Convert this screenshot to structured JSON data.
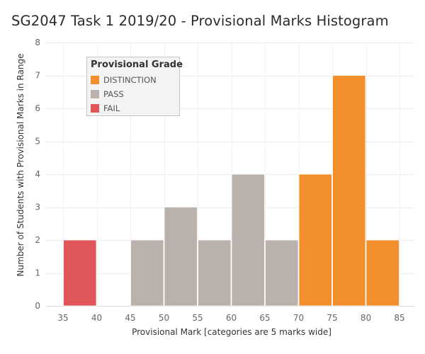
{
  "chart_data": {
    "type": "bar",
    "title": "SG2047 Task 1 2019/20 - Provisional Marks Histogram",
    "xlabel": "Provisional Mark [categories are 5 marks wide]",
    "ylabel": "Number of Students with Provisional Marks in Range",
    "x_ticks": [
      35,
      40,
      45,
      50,
      55,
      60,
      65,
      70,
      75,
      80,
      85
    ],
    "y_ticks": [
      0,
      1,
      2,
      3,
      4,
      5,
      6,
      7,
      8
    ],
    "xlim": [
      35,
      85
    ],
    "ylim": [
      0,
      8
    ],
    "bin_width": 5,
    "grid": true,
    "legend": {
      "title": "Provisional Grade",
      "placement": "top-left",
      "items": [
        {
          "label": "DISTINCTION",
          "color": "#f28e2b"
        },
        {
          "label": "PASS",
          "color": "#bab0ac"
        },
        {
          "label": "FAIL",
          "color": "#e15759"
        }
      ]
    },
    "bins": [
      {
        "start": 35,
        "end": 40,
        "value": 2,
        "grade": "FAIL"
      },
      {
        "start": 40,
        "end": 45,
        "value": 0,
        "grade": ""
      },
      {
        "start": 45,
        "end": 50,
        "value": 2,
        "grade": "PASS"
      },
      {
        "start": 50,
        "end": 55,
        "value": 3,
        "grade": "PASS"
      },
      {
        "start": 55,
        "end": 60,
        "value": 2,
        "grade": "PASS"
      },
      {
        "start": 60,
        "end": 65,
        "value": 4,
        "grade": "PASS"
      },
      {
        "start": 65,
        "end": 70,
        "value": 2,
        "grade": "PASS"
      },
      {
        "start": 70,
        "end": 75,
        "value": 4,
        "grade": "DISTINCTION"
      },
      {
        "start": 75,
        "end": 80,
        "value": 7,
        "grade": "DISTINCTION"
      },
      {
        "start": 80,
        "end": 85,
        "value": 2,
        "grade": "DISTINCTION"
      }
    ]
  }
}
